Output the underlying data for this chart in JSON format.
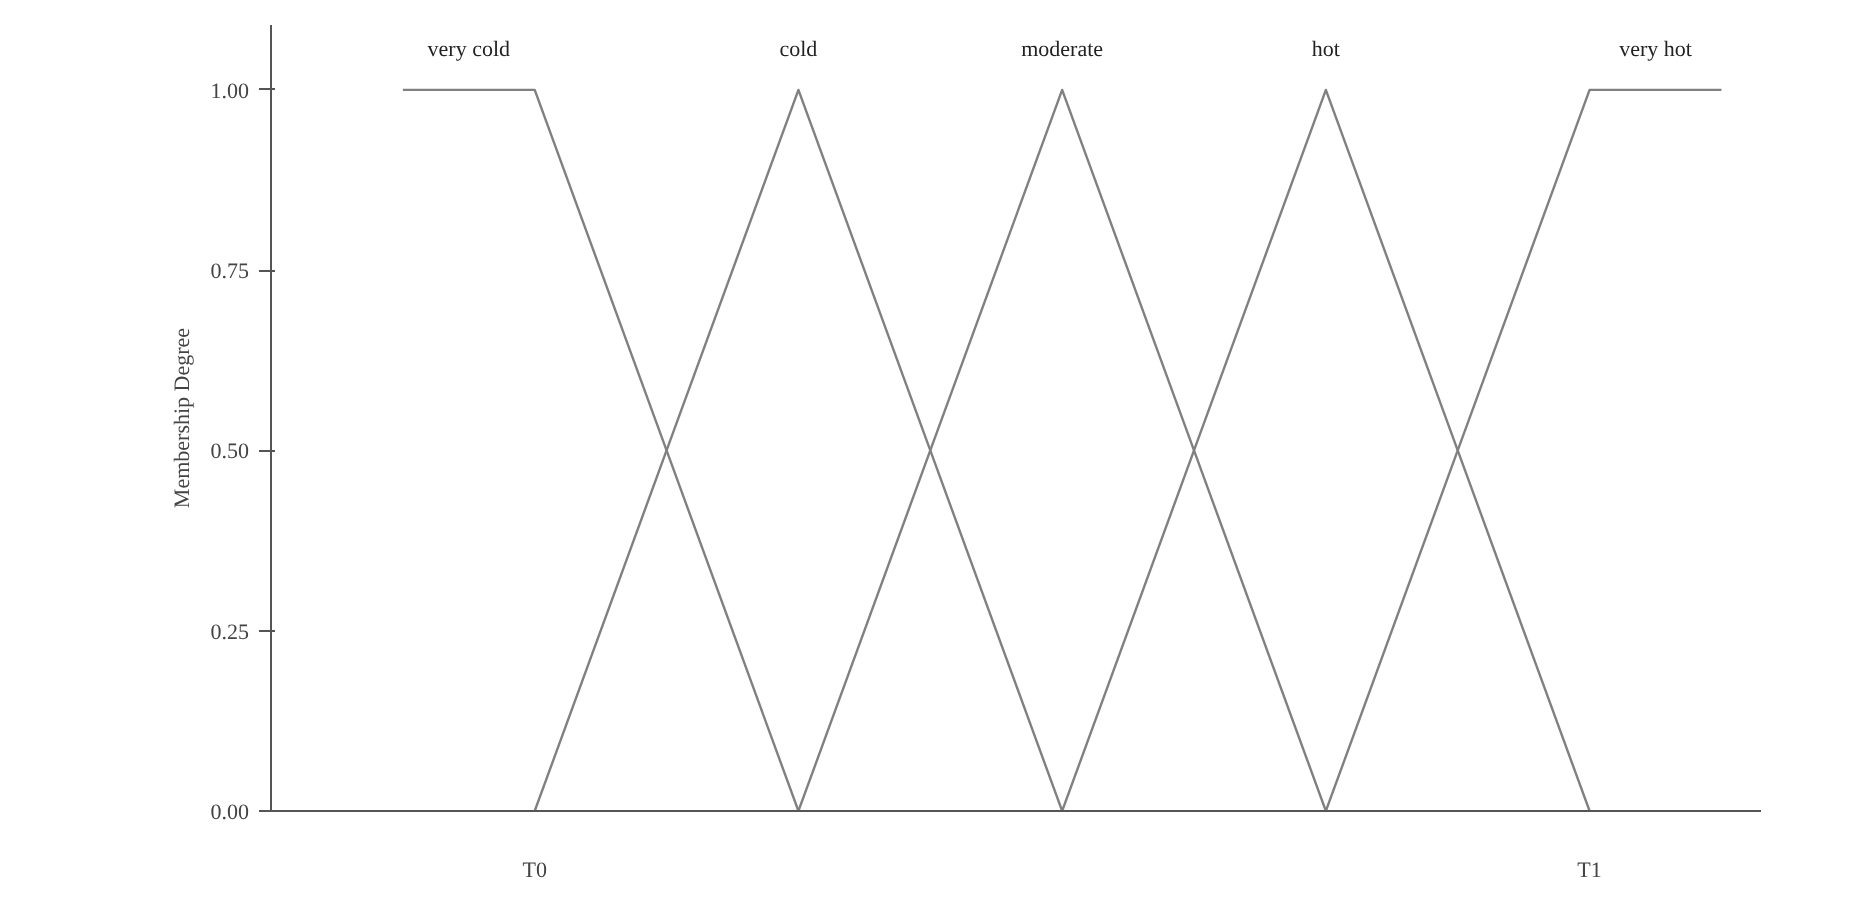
{
  "chart_data": {
    "type": "line",
    "ylabel": "Membership Degree",
    "ylim": [
      0,
      1.09
    ],
    "categories": [
      null,
      "T0",
      null,
      null,
      null,
      null,
      null,
      null,
      null,
      "T1",
      null
    ],
    "yticks": [
      {
        "value": 0,
        "label": "0.00"
      },
      {
        "value": 0.25,
        "label": "0.25"
      },
      {
        "value": 0.5,
        "label": "0.50"
      },
      {
        "value": 0.75,
        "label": "0.75"
      },
      {
        "value": 1,
        "label": "1.00"
      }
    ],
    "grid": false,
    "legend": false,
    "marker": "none",
    "line_style": "solid",
    "series": [
      {
        "name": "very cold",
        "color": "#808080",
        "values": [
          1,
          1,
          0.5,
          0,
          null,
          null,
          null,
          null,
          null,
          null,
          null
        ]
      },
      {
        "name": "cold",
        "color": "#808080",
        "values": [
          null,
          0,
          0.5,
          1,
          0.5,
          0,
          null,
          null,
          null,
          null,
          null
        ]
      },
      {
        "name": "moderate",
        "color": "#808080",
        "values": [
          null,
          null,
          null,
          0,
          0.5,
          1,
          0.5,
          0,
          null,
          null,
          null
        ]
      },
      {
        "name": "hot",
        "color": "#808080",
        "values": [
          null,
          null,
          null,
          null,
          null,
          0,
          0.5,
          1,
          0.5,
          0,
          null
        ]
      },
      {
        "name": "very hot",
        "color": "#808080",
        "values": [
          null,
          null,
          null,
          null,
          null,
          null,
          null,
          0,
          0.5,
          1,
          1
        ]
      }
    ]
  }
}
